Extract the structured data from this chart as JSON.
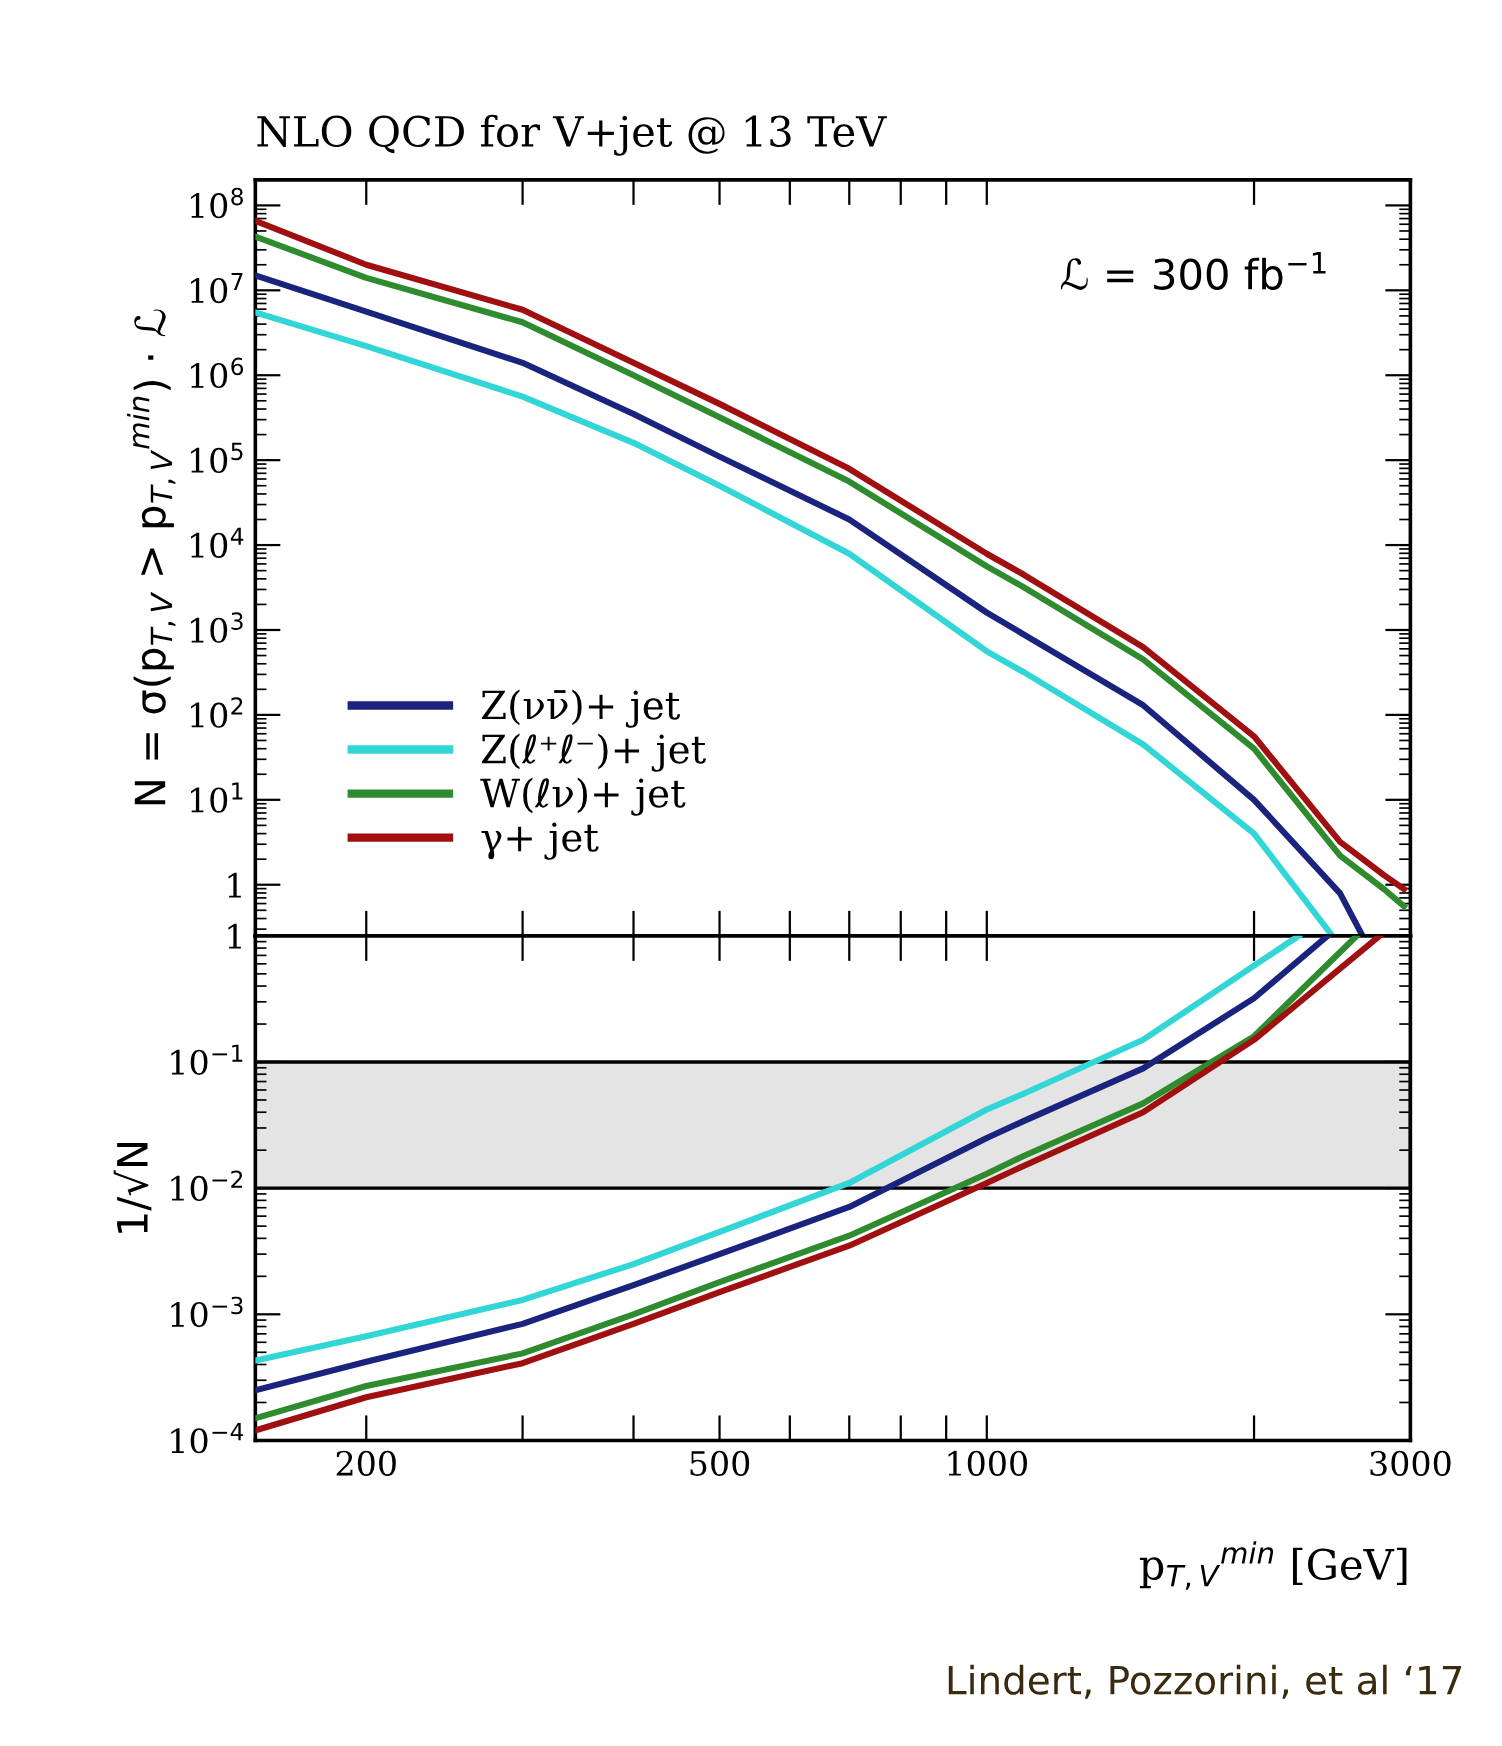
{
  "chart_data": [
    {
      "type": "line",
      "title": "NLO QCD for V+jet @ 13 TeV",
      "ylabel": "N = σ(p$_{T,V}$ > p$_{T,V}$$^{min}$) · ℒ",
      "log": "xy",
      "xlim": [
        150,
        3000
      ],
      "ylim": [
        0.25,
        200000000
      ],
      "xticks": [
        {
          "value": 200,
          "label": null
        },
        {
          "value": 300,
          "label": null
        },
        {
          "value": 400,
          "label": null
        },
        {
          "value": 500,
          "label": null
        },
        {
          "value": 600,
          "label": null
        },
        {
          "value": 700,
          "label": null
        },
        {
          "value": 800,
          "label": null
        },
        {
          "value": 900,
          "label": null
        },
        {
          "value": 1000,
          "label": null
        },
        {
          "value": 2000,
          "label": null
        },
        {
          "value": 3000,
          "label": null
        }
      ],
      "yticks": [
        {
          "value": 1,
          "label": "1"
        },
        {
          "value": 10,
          "label": "10$^{1}$"
        },
        {
          "value": 100,
          "label": "10$^{2}$"
        },
        {
          "value": 1000,
          "label": "10$^{3}$"
        },
        {
          "value": 10000,
          "label": "10$^{4}$"
        },
        {
          "value": 100000,
          "label": "10$^{5}$"
        },
        {
          "value": 1000000,
          "label": "10$^{6}$"
        },
        {
          "value": 10000000,
          "label": "10$^{7}$"
        },
        {
          "value": 100000000,
          "label": "10$^{8}$"
        }
      ],
      "tick_labels": "y",
      "legend": "bottom left",
      "grid": false,
      "annotations": [
        "ℒ = 300 fb$^{−1}$"
      ],
      "series": [
        {
          "name": "Z(νν̄)+ jet",
          "color": "#1a237e",
          "x": [
            150,
            200,
            300,
            400,
            500,
            700,
            1000,
            1100,
            1500,
            2000,
            2500,
            2650
          ],
          "values": [
            15000000,
            5600000,
            1400000,
            350000,
            110000,
            20000,
            1600,
            890,
            130,
            10,
            0.79,
            0.25
          ]
        },
        {
          "name": "Z(ℓ⁺ℓ⁻)+ jet",
          "color": "#33d6d6",
          "x": [
            150,
            200,
            300,
            400,
            500,
            700,
            1000,
            1100,
            1500,
            2000,
            2450
          ],
          "values": [
            5500000,
            2200000,
            560000,
            160000,
            50000,
            7900,
            560,
            320,
            45,
            4.0,
            0.25
          ]
        },
        {
          "name": "W(ℓν)+ jet",
          "color": "#2e8b2e",
          "x": [
            150,
            200,
            300,
            400,
            500,
            700,
            1000,
            1100,
            1500,
            2000,
            2500,
            2800,
            2950
          ],
          "values": [
            43000000,
            14000000,
            4200000,
            1000000,
            320000,
            56000,
            5600,
            3200,
            450,
            40,
            2.2,
            0.89,
            0.56
          ]
        },
        {
          "name": "γ+ jet",
          "color": "#a01010",
          "x": [
            150,
            200,
            300,
            400,
            500,
            700,
            1000,
            1100,
            1500,
            2000,
            2500,
            2800,
            2950
          ],
          "values": [
            66000000,
            20000000,
            5900000,
            1400000,
            460000,
            79000,
            7900,
            4500,
            630,
            56,
            3.2,
            1.3,
            0.89
          ]
        }
      ]
    },
    {
      "type": "line",
      "ylabel": "1/√N",
      "xlabel": "p$_{T,V}$$^{min}$ [GeV]",
      "log": "xy",
      "xlim": [
        150,
        3000
      ],
      "ylim": [
        0.0001,
        1
      ],
      "xticks": [
        200,
        {
          "value": 300,
          "label": null
        },
        {
          "value": 400,
          "label": null
        },
        500,
        {
          "value": 600,
          "label": null
        },
        {
          "value": 700,
          "label": null
        },
        {
          "value": 800,
          "label": null
        },
        {
          "value": 900,
          "label": null
        },
        1000,
        {
          "value": 2000,
          "label": null
        },
        3000
      ],
      "yticks": [
        {
          "value": 0.0001,
          "label": "10$^{−4}$"
        },
        {
          "value": 0.001,
          "label": "10$^{−3}$"
        },
        {
          "value": 0.01,
          "label": "10$^{−2}$"
        },
        {
          "value": 0.1,
          "label": "10$^{−1}$"
        },
        {
          "value": 1,
          "label": "1"
        }
      ],
      "grid": false,
      "bands": [
        {
          "axis": "y",
          "from": 0.01,
          "to": 0.1,
          "color": "#e4e4e4"
        }
      ],
      "annotations": [
        "Lindert, Pozzorini, et al ‘17"
      ],
      "series": [
        {
          "color": "#1a237e",
          "x": [
            150,
            200,
            300,
            400,
            500,
            700,
            1000,
            1100,
            1500,
            2000,
            2420
          ],
          "values": [
            0.00025,
            0.00042,
            0.00084,
            0.0017,
            0.003,
            0.0071,
            0.025,
            0.034,
            0.089,
            0.32,
            1
          ]
        },
        {
          "color": "#33d6d6",
          "x": [
            150,
            200,
            300,
            400,
            500,
            700,
            1000,
            1100,
            1500,
            2245
          ],
          "values": [
            0.00043,
            0.00067,
            0.0013,
            0.0025,
            0.0045,
            0.011,
            0.042,
            0.056,
            0.15,
            1
          ]
        },
        {
          "color": "#2e8b2e",
          "x": [
            150,
            200,
            300,
            400,
            500,
            700,
            1000,
            1100,
            1500,
            2000,
            2610
          ],
          "values": [
            0.00015,
            0.00027,
            0.00049,
            0.001,
            0.0018,
            0.0042,
            0.013,
            0.018,
            0.047,
            0.16,
            1
          ]
        },
        {
          "color": "#a01010",
          "x": [
            150,
            200,
            300,
            400,
            500,
            700,
            1000,
            1100,
            1500,
            2000,
            2770
          ],
          "values": [
            0.00012,
            0.00022,
            0.00041,
            0.00084,
            0.0015,
            0.0035,
            0.011,
            0.015,
            0.04,
            0.15,
            1
          ]
        }
      ]
    }
  ]
}
